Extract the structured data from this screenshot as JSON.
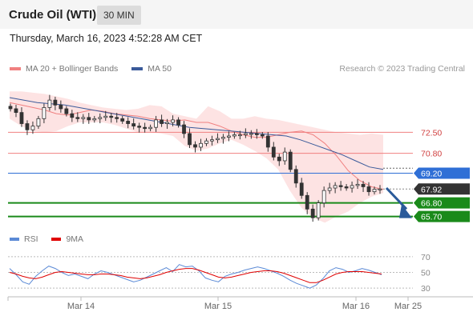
{
  "header": {
    "title": "Crude Oil (WTI)",
    "timeframe": "30 MIN"
  },
  "datetime": "Thursday, March 16, 2023 4:52:28 AM CET",
  "legend": {
    "ma20_label": "MA 20 + Bollinger Bands",
    "ma50_label": "MA 50",
    "rsi_label": "RSI",
    "rsi_ma_label": "9MA",
    "credit": "Research © 2023 Trading Central"
  },
  "colors": {
    "ma20": "#f08080",
    "bollinger_fill": "#fcd9d9",
    "ma50": "#3a5a9a",
    "candle": "#333333",
    "resistance": "#f08080",
    "pivot": "#2f6fd6",
    "support": "#1a8a1a",
    "current": "#333333",
    "arrow": "#2a5a9a",
    "rsi": "#5b8ad6",
    "rsi_ma": "#e00000"
  },
  "chart_data": {
    "type": "candlestick",
    "instrument": "Crude Oil (WTI)",
    "interval": "30 MIN",
    "ylim": [
      64.9,
      76.4
    ],
    "x_ticks": [
      "Mar 14",
      "Mar 15",
      "Mar 16",
      "Mar 25"
    ],
    "levels": [
      {
        "value": 72.5,
        "label": "72.50",
        "kind": "resistance"
      },
      {
        "value": 70.8,
        "label": "70.80",
        "kind": "resistance"
      },
      {
        "value": 69.2,
        "label": "69.20",
        "kind": "pivot"
      },
      {
        "value": 67.92,
        "label": "67.92",
        "kind": "current"
      },
      {
        "value": 66.8,
        "label": "66.80",
        "kind": "support"
      },
      {
        "value": 65.7,
        "label": "65.70",
        "kind": "support"
      }
    ],
    "price_close": [
      74.4,
      74.1,
      73.2,
      72.7,
      73.0,
      73.6,
      74.5,
      75.1,
      74.7,
      74.4,
      74.0,
      73.7,
      73.6,
      73.7,
      73.5,
      73.6,
      73.7,
      73.8,
      73.7,
      73.6,
      73.4,
      73.2,
      73.0,
      72.9,
      72.8,
      72.9,
      73.5,
      73.2,
      73.3,
      73.5,
      73.1,
      72.4,
      71.5,
      71.3,
      71.6,
      71.8,
      71.9,
      72.0,
      72.1,
      72.2,
      72.3,
      72.3,
      72.4,
      72.4,
      72.3,
      72.2,
      71.3,
      70.5,
      70.2,
      70.9,
      69.5,
      68.4,
      67.4,
      66.3,
      65.6,
      66.8,
      67.8,
      68.0,
      68.2,
      68.1,
      68.0,
      68.2,
      68.3,
      68.1,
      67.7,
      67.9,
      67.92
    ],
    "bollinger_upper": [
      75.8,
      75.8,
      75.7,
      75.6,
      75.4,
      75.2,
      74.9,
      74.7,
      74.5,
      74.4,
      74.3,
      74.4,
      74.7,
      74.6,
      74.0,
      73.8,
      73.6,
      74.6,
      74.2,
      73.6,
      73.6,
      73.8,
      73.6,
      73.5,
      73.3,
      73.1,
      72.9,
      72.7,
      72.5,
      72.4,
      72.3,
      72.4,
      72.3
    ],
    "ma20": [
      74.9,
      74.7,
      74.5,
      74.3,
      74.0,
      73.9,
      74.1,
      74.3,
      74.2,
      74.0,
      73.9,
      73.8,
      73.6,
      73.5,
      73.4,
      73.5,
      73.3,
      73.3,
      73.0,
      72.6,
      72.3,
      72.1,
      72.1,
      72.3,
      72.5,
      72.6,
      72.3,
      71.6,
      70.6,
      69.4,
      68.6,
      68.1,
      67.9
    ],
    "bollinger_lower": [
      73.6,
      73.0,
      72.6,
      72.5,
      72.6,
      73.0,
      73.3,
      73.3,
      73.3,
      73.1,
      72.8,
      72.5,
      72.5,
      72.4,
      72.2,
      71.4,
      71.0,
      71.2,
      71.6,
      71.9,
      71.5,
      71.0,
      70.4,
      69.5,
      67.8,
      66.4,
      65.6,
      65.2,
      65.7,
      66.1,
      66.8,
      67.3,
      67.6
    ],
    "ma50": [
      75.3,
      75.1,
      74.9,
      74.8,
      74.7,
      74.5,
      74.3,
      74.1,
      73.9,
      73.7,
      73.5,
      73.3,
      73.1,
      72.9,
      72.8,
      72.7,
      72.6,
      72.5,
      72.4,
      72.3,
      72.2,
      71.9,
      71.5,
      71.1,
      70.7,
      70.2,
      69.7,
      69.5
    ],
    "rsi_ylim": [
      20,
      80
    ],
    "rsi_ticks": [
      70,
      50,
      30
    ],
    "rsi": [
      55,
      47,
      38,
      35,
      45,
      52,
      58,
      55,
      50,
      46,
      48,
      45,
      42,
      48,
      52,
      50,
      47,
      44,
      41,
      38,
      40,
      44,
      48,
      52,
      56,
      51,
      60,
      57,
      58,
      52,
      43,
      40,
      38,
      45,
      48,
      50,
      53,
      55,
      57,
      55,
      52,
      49,
      45,
      40,
      36,
      33,
      30,
      34,
      42,
      52,
      56,
      54,
      50,
      52,
      55,
      53,
      50,
      47
    ],
    "rsi_ma": [
      50,
      48,
      45,
      43,
      42,
      44,
      47,
      50,
      51,
      50,
      49,
      48,
      47,
      47,
      48,
      48,
      47,
      46,
      44,
      43,
      42,
      43,
      45,
      47,
      50,
      52,
      54,
      55,
      55,
      53,
      50,
      47,
      44,
      43,
      44,
      46,
      48,
      50,
      51,
      52,
      52,
      51,
      49,
      46,
      43,
      40,
      37,
      37,
      40,
      44,
      48,
      50,
      51,
      51,
      51,
      50,
      49,
      48
    ]
  }
}
